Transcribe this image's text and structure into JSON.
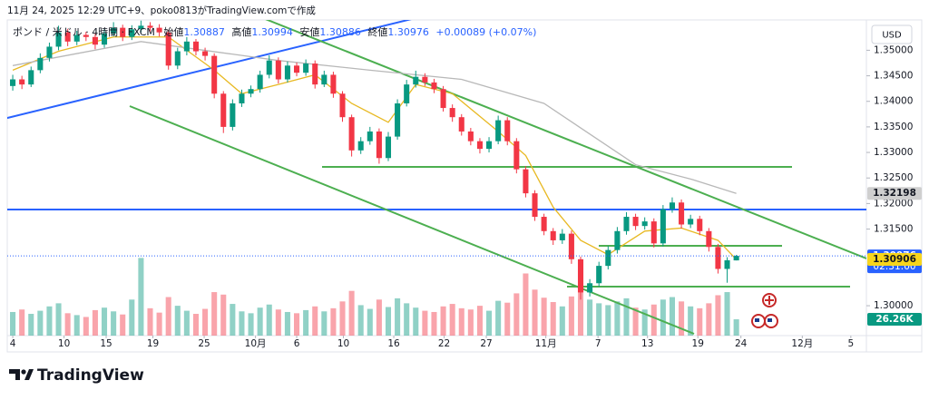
{
  "header": {
    "text": "11月 24, 2025 12:29 UTC+9、poko0813がTradingView.comで作成"
  },
  "chart_data": {
    "type": "candlestick",
    "legend": {
      "symbol": "ポンド / 米ドル · 4時間 · FXCM",
      "open_label": "始値",
      "open": 1.30887,
      "high_label": "高値",
      "high": 1.30994,
      "low_label": "安値",
      "low": 1.30886,
      "close_label": "終値",
      "close": 1.30976,
      "change": "+0.00089 (+0.07%)"
    },
    "currency": "USD",
    "up_color": "#089981",
    "down_color": "#f23645",
    "candles": [
      [
        1.343,
        1.3452,
        1.3421,
        1.3443
      ],
      [
        1.3443,
        1.345,
        1.3424,
        1.3433
      ],
      [
        1.3433,
        1.3468,
        1.3428,
        1.3461
      ],
      [
        1.3461,
        1.3494,
        1.3455,
        1.3485
      ],
      [
        1.3485,
        1.3515,
        1.3478,
        1.3507
      ],
      [
        1.3507,
        1.3548,
        1.35,
        1.3535
      ],
      [
        1.3535,
        1.3542,
        1.3508,
        1.3517
      ],
      [
        1.3517,
        1.3538,
        1.351,
        1.353
      ],
      [
        1.353,
        1.3536,
        1.3518,
        1.3526
      ],
      [
        1.3526,
        1.3532,
        1.3502,
        1.3511
      ],
      [
        1.3511,
        1.3541,
        1.3505,
        1.3533
      ],
      [
        1.3533,
        1.3555,
        1.3527,
        1.3544
      ],
      [
        1.3544,
        1.355,
        1.3518,
        1.3526
      ],
      [
        1.3526,
        1.3549,
        1.352,
        1.3541
      ],
      [
        1.3541,
        1.3558,
        1.3535,
        1.3548
      ],
      [
        1.3548,
        1.3555,
        1.3536,
        1.3544
      ],
      [
        1.3544,
        1.3551,
        1.3527,
        1.3535
      ],
      [
        1.3535,
        1.354,
        1.3462,
        1.347
      ],
      [
        1.347,
        1.3505,
        1.3463,
        1.3498
      ],
      [
        1.3498,
        1.3526,
        1.349,
        1.3517
      ],
      [
        1.3517,
        1.3522,
        1.349,
        1.3498
      ],
      [
        1.3498,
        1.3505,
        1.348,
        1.3489
      ],
      [
        1.3489,
        1.3494,
        1.3406,
        1.3415
      ],
      [
        1.3415,
        1.342,
        1.3338,
        1.335
      ],
      [
        1.335,
        1.3404,
        1.3343,
        1.3396
      ],
      [
        1.3396,
        1.3423,
        1.3389,
        1.3415
      ],
      [
        1.3415,
        1.3431,
        1.3408,
        1.3424
      ],
      [
        1.3424,
        1.346,
        1.3417,
        1.3452
      ],
      [
        1.3452,
        1.349,
        1.3445,
        1.348
      ],
      [
        1.348,
        1.3486,
        1.3435,
        1.3443
      ],
      [
        1.3443,
        1.3478,
        1.3437,
        1.347
      ],
      [
        1.347,
        1.3476,
        1.3449,
        1.3456
      ],
      [
        1.3456,
        1.3482,
        1.345,
        1.3474
      ],
      [
        1.3474,
        1.348,
        1.3425,
        1.3433
      ],
      [
        1.3433,
        1.346,
        1.3428,
        1.3452
      ],
      [
        1.3452,
        1.3458,
        1.3407,
        1.3415
      ],
      [
        1.3415,
        1.342,
        1.336,
        1.3369
      ],
      [
        1.3369,
        1.3374,
        1.3292,
        1.3304
      ],
      [
        1.3304,
        1.333,
        1.3297,
        1.3322
      ],
      [
        1.3322,
        1.335,
        1.3315,
        1.3341
      ],
      [
        1.3341,
        1.3347,
        1.3278,
        1.3289
      ],
      [
        1.3289,
        1.334,
        1.3283,
        1.3331
      ],
      [
        1.3331,
        1.3404,
        1.3325,
        1.3396
      ],
      [
        1.3396,
        1.3442,
        1.339,
        1.3433
      ],
      [
        1.3433,
        1.346,
        1.3427,
        1.3448
      ],
      [
        1.3448,
        1.3455,
        1.343,
        1.3437
      ],
      [
        1.3437,
        1.3444,
        1.3416,
        1.3424
      ],
      [
        1.3424,
        1.343,
        1.338,
        1.3387
      ],
      [
        1.3387,
        1.3394,
        1.336,
        1.3369
      ],
      [
        1.3369,
        1.3375,
        1.3333,
        1.3341
      ],
      [
        1.3341,
        1.3348,
        1.3314,
        1.3322
      ],
      [
        1.3322,
        1.3328,
        1.3298,
        1.3307
      ],
      [
        1.3307,
        1.333,
        1.33,
        1.3322
      ],
      [
        1.3322,
        1.3372,
        1.3316,
        1.3363
      ],
      [
        1.3363,
        1.3369,
        1.3314,
        1.3322
      ],
      [
        1.3322,
        1.3328,
        1.3259,
        1.3267
      ],
      [
        1.3267,
        1.3273,
        1.3212,
        1.322
      ],
      [
        1.322,
        1.3226,
        1.3166,
        1.3174
      ],
      [
        1.3174,
        1.318,
        1.3138,
        1.3146
      ],
      [
        1.3146,
        1.3152,
        1.3119,
        1.3128
      ],
      [
        1.3128,
        1.315,
        1.3121,
        1.3141
      ],
      [
        1.3141,
        1.3147,
        1.3082,
        1.3091
      ],
      [
        1.3091,
        1.3096,
        1.3012,
        1.3026
      ],
      [
        1.3026,
        1.3052,
        1.3018,
        1.3044
      ],
      [
        1.3044,
        1.3086,
        1.3037,
        1.3078
      ],
      [
        1.3078,
        1.3117,
        1.3071,
        1.3109
      ],
      [
        1.3109,
        1.3154,
        1.3102,
        1.3146
      ],
      [
        1.3146,
        1.3183,
        1.3139,
        1.3174
      ],
      [
        1.3174,
        1.318,
        1.3148,
        1.3156
      ],
      [
        1.3156,
        1.3173,
        1.3149,
        1.3165
      ],
      [
        1.3165,
        1.3171,
        1.3114,
        1.3122
      ],
      [
        1.3122,
        1.3197,
        1.3116,
        1.3189
      ],
      [
        1.3189,
        1.3212,
        1.3182,
        1.3202
      ],
      [
        1.3202,
        1.3208,
        1.3151,
        1.3159
      ],
      [
        1.3159,
        1.3178,
        1.3152,
        1.317
      ],
      [
        1.317,
        1.3176,
        1.3138,
        1.3146
      ],
      [
        1.3146,
        1.3152,
        1.3106,
        1.3115
      ],
      [
        1.3115,
        1.3121,
        1.3063,
        1.3072
      ],
      [
        1.3072,
        1.3095,
        1.3045,
        1.3089
      ],
      [
        1.30887,
        1.30994,
        1.30886,
        1.30976
      ]
    ],
    "volume": [
      38000,
      42000,
      35000,
      40000,
      47000,
      52000,
      36000,
      33000,
      30000,
      41000,
      45000,
      39000,
      34000,
      58000,
      125000,
      44000,
      37000,
      62000,
      48000,
      40000,
      35000,
      43000,
      70000,
      66000,
      51000,
      39000,
      36000,
      45000,
      50000,
      42000,
      38000,
      36000,
      41000,
      47000,
      39000,
      44000,
      55000,
      72000,
      49000,
      43000,
      58000,
      46000,
      60000,
      52000,
      45000,
      40000,
      38000,
      47000,
      51000,
      44000,
      42000,
      48000,
      40000,
      56000,
      53000,
      68000,
      100000,
      74000,
      61000,
      54000,
      47000,
      63000,
      80000,
      58000,
      52000,
      49000,
      55000,
      60000,
      45000,
      42000,
      50000,
      58000,
      62000,
      55000,
      47000,
      44000,
      52000,
      65000,
      70000,
      26260
    ],
    "volume_ylim": [
      0,
      508000
    ],
    "volume_label": {
      "value": 26260,
      "label": "26.26K"
    },
    "ma": [
      {
        "color": "#e8b923",
        "x": [
          0,
          5,
          11,
          17,
          22,
          25,
          29,
          33,
          37,
          41,
          44,
          48,
          53,
          56,
          59,
          62,
          65,
          69,
          73,
          77,
          79
        ],
        "values": [
          1.3461,
          1.3498,
          1.3526,
          1.3526,
          1.3461,
          1.3415,
          1.3433,
          1.3452,
          1.3396,
          1.3359,
          1.3433,
          1.3415,
          1.3341,
          1.3294,
          1.3193,
          1.3128,
          1.31,
          1.3146,
          1.3152,
          1.3128,
          1.30906
        ]
      },
      {
        "color": "#b8b8b8",
        "x": [
          0,
          14,
          29,
          39,
          49,
          58,
          68,
          74,
          79
        ],
        "values": [
          1.347,
          1.3517,
          1.348,
          1.3461,
          1.3443,
          1.3396,
          1.3276,
          1.3248,
          1.32198
        ]
      }
    ],
    "price_labels": [
      {
        "value": 1.32198,
        "color": "#cfcfcf"
      },
      {
        "value": 1.30976,
        "color": "#2962ff",
        "countdown": "02:31:00"
      },
      {
        "value": 1.30906,
        "color": "#f7d51d"
      }
    ],
    "ylim": [
      1.29415,
      1.35593
    ],
    "yticks": [
      {
        "value": 1.35,
        "label": "1.35000"
      },
      {
        "value": 1.345,
        "label": "1.34500"
      },
      {
        "value": 1.34,
        "label": "1.34000"
      },
      {
        "value": 1.335,
        "label": "1.33500"
      },
      {
        "value": 1.33,
        "label": "1.33000"
      },
      {
        "value": 1.325,
        "label": "1.32500"
      },
      {
        "value": 1.32,
        "label": "1.32000"
      },
      {
        "value": 1.315,
        "label": "1.31500"
      },
      {
        "value": 1.3,
        "label": "1.30000"
      }
    ],
    "xlim": [
      -0.6,
      93.2
    ],
    "xticks": [
      {
        "value": 0,
        "label": "4"
      },
      {
        "value": 5.6,
        "label": "10"
      },
      {
        "value": 10.2,
        "label": "15"
      },
      {
        "value": 15.3,
        "label": "19"
      },
      {
        "value": 20.9,
        "label": "25"
      },
      {
        "value": 26.5,
        "label": "10月"
      },
      {
        "value": 31,
        "label": "6"
      },
      {
        "value": 36.1,
        "label": "10"
      },
      {
        "value": 41.6,
        "label": "16"
      },
      {
        "value": 47.1,
        "label": "22"
      },
      {
        "value": 51.7,
        "label": "27"
      },
      {
        "value": 58.2,
        "label": "11月"
      },
      {
        "value": 63.9,
        "label": "7"
      },
      {
        "value": 69.3,
        "label": "13"
      },
      {
        "value": 74.8,
        "label": "19"
      },
      {
        "value": 79.5,
        "label": "24"
      },
      {
        "value": 86.2,
        "label": "12月"
      },
      {
        "value": 91.5,
        "label": "5"
      }
    ]
  },
  "footer": {
    "brand": "TradingView"
  }
}
